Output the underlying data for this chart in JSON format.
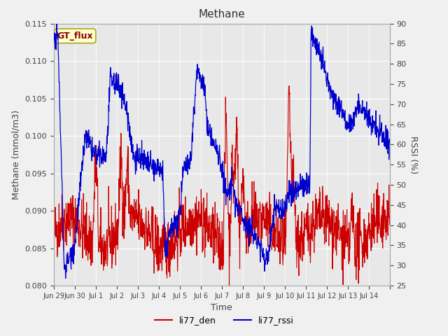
{
  "title": "Methane",
  "xlabel": "Time",
  "ylabel_left": "Methane (mmol/m3)",
  "ylabel_right": "RSSI (%)",
  "ylim_left": [
    0.08,
    0.115
  ],
  "ylim_right": [
    25,
    90
  ],
  "yticks_left": [
    0.08,
    0.085,
    0.09,
    0.095,
    0.1,
    0.105,
    0.11,
    0.115
  ],
  "yticks_right": [
    25,
    30,
    35,
    40,
    45,
    50,
    55,
    60,
    65,
    70,
    75,
    80,
    85,
    90
  ],
  "annotation_box": "GT_flux",
  "legend_labels": [
    "li77_den",
    "li77_rssi"
  ],
  "line_color_red": "#cc0000",
  "line_color_blue": "#0000cc",
  "plot_bg_color": "#e8e8e8",
  "num_days": 16,
  "xtick_positions": [
    0,
    1,
    2,
    3,
    4,
    5,
    6,
    7,
    8,
    9,
    10,
    11,
    12,
    13,
    14,
    15,
    16
  ],
  "xtick_labels": [
    "Jun 29",
    "Jun 30",
    "Jul 1",
    "Jul 2",
    "Jul 3",
    "Jul 4",
    "Jul 5",
    "Jul 6",
    "Jul 7",
    "Jul 8",
    "Jul 9",
    "Jul 10",
    "Jul 11",
    "Jul 12",
    "Jul 13",
    "Jul 14",
    ""
  ],
  "seed": 42,
  "segments_rssi": [
    [
      0.0,
      86
    ],
    [
      0.15,
      87
    ],
    [
      0.2,
      86
    ],
    [
      0.5,
      29
    ],
    [
      1.0,
      35
    ],
    [
      1.5,
      62
    ],
    [
      2.0,
      57
    ],
    [
      2.5,
      57
    ],
    [
      2.7,
      76
    ],
    [
      3.0,
      75
    ],
    [
      3.2,
      74
    ],
    [
      3.5,
      68
    ],
    [
      3.8,
      57
    ],
    [
      4.0,
      57
    ],
    [
      4.5,
      55
    ],
    [
      4.8,
      54
    ],
    [
      5.0,
      54
    ],
    [
      5.2,
      53
    ],
    [
      5.3,
      32
    ],
    [
      5.5,
      38
    ],
    [
      6.0,
      42
    ],
    [
      6.2,
      56
    ],
    [
      6.5,
      55
    ],
    [
      6.8,
      78
    ],
    [
      7.0,
      77
    ],
    [
      7.2,
      73
    ],
    [
      7.3,
      65
    ],
    [
      7.5,
      62
    ],
    [
      8.0,
      55
    ],
    [
      8.2,
      47
    ],
    [
      8.5,
      50
    ],
    [
      8.7,
      45
    ],
    [
      9.0,
      42
    ],
    [
      9.2,
      40
    ],
    [
      9.5,
      38
    ],
    [
      9.8,
      35
    ],
    [
      10.0,
      32
    ],
    [
      10.2,
      32
    ],
    [
      10.5,
      44
    ],
    [
      10.8,
      44
    ],
    [
      11.0,
      44
    ],
    [
      11.2,
      48
    ],
    [
      11.5,
      48
    ],
    [
      11.8,
      50
    ],
    [
      12.0,
      50
    ],
    [
      12.2,
      50
    ],
    [
      12.25,
      88
    ],
    [
      12.5,
      85
    ],
    [
      12.8,
      80
    ],
    [
      13.0,
      76
    ],
    [
      13.2,
      73
    ],
    [
      13.5,
      70
    ],
    [
      13.8,
      68
    ],
    [
      14.0,
      65
    ],
    [
      14.2,
      65
    ],
    [
      14.5,
      70
    ],
    [
      14.8,
      68
    ],
    [
      15.0,
      66
    ],
    [
      15.5,
      63
    ],
    [
      16.0,
      60
    ]
  ],
  "spike_positions": [
    [
      2.0,
      0.013
    ],
    [
      3.2,
      0.01
    ],
    [
      3.5,
      0.008
    ],
    [
      8.2,
      0.018
    ],
    [
      8.5,
      0.012
    ],
    [
      8.7,
      0.016
    ],
    [
      9.0,
      0.008
    ],
    [
      11.2,
      0.022
    ],
    [
      11.4,
      0.01
    ],
    [
      14.2,
      0.005
    ]
  ]
}
